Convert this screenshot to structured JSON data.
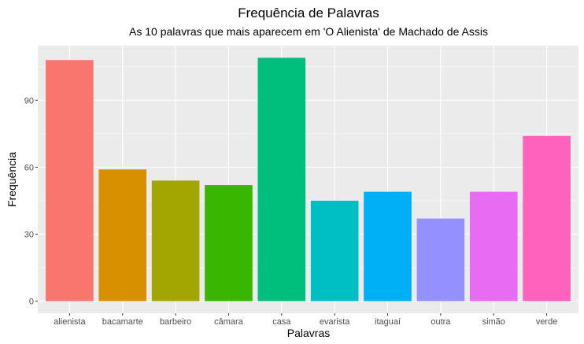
{
  "chart_data": {
    "type": "bar",
    "title": "Frequência de Palavras",
    "subtitle": "As 10 palavras que mais aparecem em 'O Alienista' de Machado de Assis",
    "xlabel": "Palavras",
    "ylabel": "Frequência",
    "categories": [
      "alienista",
      "bacamarte",
      "barbeiro",
      "câmara",
      "casa",
      "evarista",
      "itaguaí",
      "outra",
      "simão",
      "verde"
    ],
    "values": [
      108,
      59,
      54,
      52,
      109,
      45,
      49,
      37,
      49,
      74
    ],
    "colors": [
      "#F8766D",
      "#D89000",
      "#A3A500",
      "#39B600",
      "#00BF7D",
      "#00BFC4",
      "#00B0F6",
      "#9590FF",
      "#E76BF3",
      "#FF62BC"
    ],
    "yticks": [
      0,
      30,
      60,
      90
    ],
    "ylim": [
      -5.45,
      114.45
    ],
    "grid": true,
    "legend": "none"
  }
}
